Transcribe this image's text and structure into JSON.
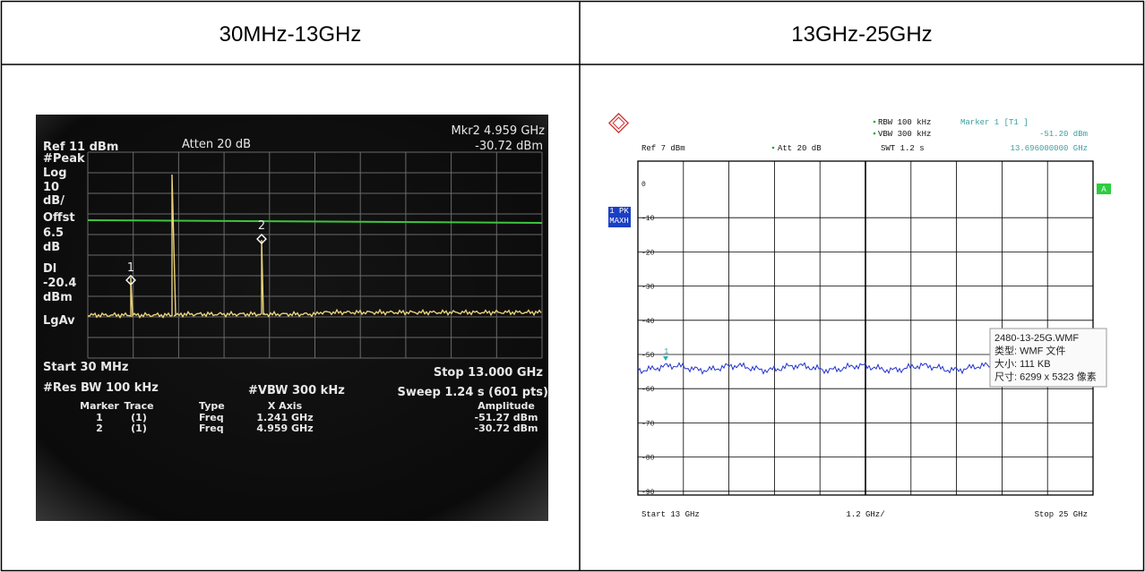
{
  "table": {
    "header": [
      "30MHz-13GHz",
      "13GHz-25GHz"
    ]
  },
  "left_screen": {
    "marker_readout": "Mkr2 4.959 GHz",
    "marker_amplitude": "-30.72 dBm",
    "ref": "Ref 11 dBm",
    "atten": "Atten 20 dB",
    "side_labels": [
      "#Peak",
      "Log",
      "10",
      "dB/",
      "Offst",
      "6.5",
      "dB",
      "Dl",
      "-20.4",
      "dBm",
      "LgAv"
    ],
    "marker_labels": [
      "1",
      "2"
    ],
    "start": "Start 30 MHz",
    "stop": "Stop 13.000 GHz",
    "res_bw": "#Res BW 100 kHz",
    "vbw": "#VBW 300 kHz",
    "sweep": "Sweep 1.24 s (601 pts)",
    "marker_table": {
      "columns": [
        "Marker",
        "Trace",
        "Type",
        "X Axis",
        "Amplitude"
      ],
      "rows": [
        [
          "1",
          "(1)",
          "Freq",
          "1.241 GHz",
          "-51.27 dBm"
        ],
        [
          "2",
          "(1)",
          "Freq",
          "4.959 GHz",
          "-30.72 dBm"
        ]
      ]
    }
  },
  "right_screen": {
    "rbw": "RBW 100 kHz",
    "marker": "Marker 1 [T1 ]",
    "vbw": "VBW 300 kHz",
    "marker_amplitude": "-51.20 dBm",
    "ref": "Ref 7 dBm",
    "att": "Att 20 dB",
    "swt": "SWT 1.2 s",
    "marker_freq": "13.696000000 GHz",
    "trace_badge": [
      "1 PK",
      "MAXH"
    ],
    "a_badge": "A",
    "y_labels": [
      "0",
      "-10",
      "-20",
      "-30",
      "-40",
      "-50",
      "-60",
      "-70",
      "-80",
      "-90"
    ],
    "marker_label": "1",
    "start": "Start 13 GHz",
    "span_div": "1.2 GHz/",
    "stop": "Stop 25 GHz",
    "tooltip": [
      "2480-13-25G.WMF",
      "类型: WMF 文件",
      "大小: 111 KB",
      "尺寸: 6299 x 5323 像素"
    ]
  }
}
